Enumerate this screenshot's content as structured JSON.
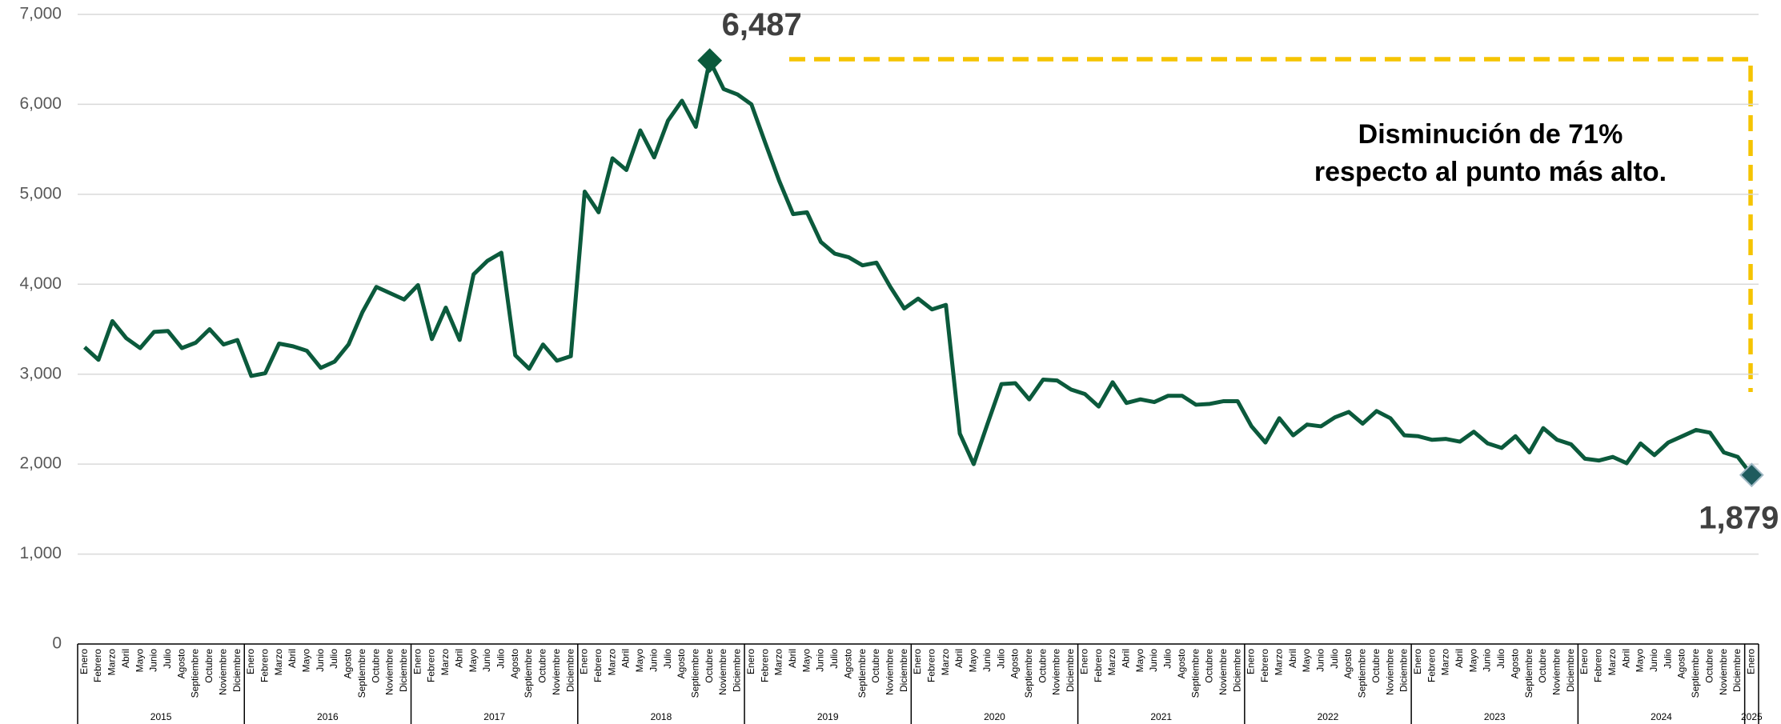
{
  "chart_data": {
    "type": "line",
    "categories": [
      "Enero",
      "Febrero",
      "Marzo",
      "Abril",
      "Mayo",
      "Junio",
      "Julio",
      "Agosto",
      "Septiembre",
      "Octubre",
      "Noviembre",
      "Diciembre",
      "Enero",
      "Febrero",
      "Marzo",
      "Abril",
      "Mayo",
      "Junio",
      "Julio",
      "Agosto",
      "Septiembre",
      "Octubre",
      "Noviembre",
      "Diciembre",
      "Enero",
      "Febrero",
      "Marzo",
      "Abril",
      "Mayo",
      "Junio",
      "Julio",
      "Agosto",
      "Septiembre",
      "Octubre",
      "Noviembre",
      "Diciembre",
      "Enero",
      "Febrero",
      "Marzo",
      "Abril",
      "Mayo",
      "Junio",
      "Julio",
      "Agosto",
      "Septiembre",
      "Octubre",
      "Noviembre",
      "Diciembre",
      "Enero",
      "Febrero",
      "Marzo",
      "Abril",
      "Mayo",
      "Junio",
      "Julio",
      "Agosto",
      "Septiembre",
      "Octubre",
      "Noviembre",
      "Diciembre",
      "Enero",
      "Febrero",
      "Marzo",
      "Abril",
      "Mayo",
      "Junio",
      "Julio",
      "Agosto",
      "Septiembre",
      "Octubre",
      "Noviembre",
      "Diciembre",
      "Enero",
      "Febrero",
      "Marzo",
      "Abril",
      "Mayo",
      "Junio",
      "Julio",
      "Agosto",
      "Septiembre",
      "Octubre",
      "Noviembre",
      "Diciembre",
      "Enero",
      "Febrero",
      "Marzo",
      "Abril",
      "Mayo",
      "Junio",
      "Julio",
      "Agosto",
      "Septiembre",
      "Octubre",
      "Noviembre",
      "Diciembre",
      "Enero",
      "Febrero",
      "Marzo",
      "Abril",
      "Mayo",
      "Junio",
      "Julio",
      "Agosto",
      "Septiembre",
      "Octubre",
      "Noviembre",
      "Diciembre",
      "Enero",
      "Febrero",
      "Marzo",
      "Abril",
      "Mayo",
      "Junio",
      "Julio",
      "Agosto",
      "Septiembre",
      "Octubre",
      "Noviembre",
      "Diciembre",
      "Enero"
    ],
    "category_groups": [
      "2015",
      "2016",
      "2017",
      "2018",
      "2019",
      "2020",
      "2021",
      "2022",
      "2023",
      "2024",
      "2025"
    ],
    "series": [
      {
        "color": "#0b5a3c",
        "values": [
          3300,
          3160,
          3590,
          3400,
          3290,
          3470,
          3480,
          3290,
          3350,
          3500,
          3330,
          3380,
          2980,
          3010,
          3340,
          3310,
          3260,
          3070,
          3140,
          3330,
          3690,
          3970,
          3900,
          3830,
          3990,
          3390,
          3740,
          3380,
          4110,
          4260,
          4350,
          3210,
          3060,
          3330,
          3150,
          3200,
          5030,
          4800,
          5400,
          5270,
          5710,
          5410,
          5820,
          6040,
          5750,
          6487,
          6170,
          6110,
          6000,
          5570,
          5150,
          4780,
          4800,
          4470,
          4340,
          4300,
          4210,
          4240,
          3970,
          3730,
          3840,
          3720,
          3770,
          2340,
          2000,
          2450,
          2890,
          2900,
          2720,
          2940,
          2930,
          2830,
          2780,
          2640,
          2910,
          2680,
          2720,
          2690,
          2760,
          2760,
          2660,
          2670,
          2700,
          2700,
          2420,
          2240,
          2510,
          2320,
          2440,
          2420,
          2520,
          2580,
          2450,
          2590,
          2510,
          2320,
          2310,
          2270,
          2280,
          2250,
          2360,
          2230,
          2180,
          2310,
          2130,
          2400,
          2270,
          2220,
          2060,
          2040,
          2080,
          2010,
          2230,
          2100,
          2240,
          2310,
          2380,
          2350,
          2130,
          2080,
          1879
        ]
      }
    ],
    "value_labels": [
      null,
      null,
      null,
      null,
      null,
      null,
      null,
      null,
      null,
      null,
      null,
      null,
      null,
      null,
      null,
      null,
      null,
      null,
      null,
      null,
      null,
      null,
      null,
      null,
      null,
      null,
      null,
      null,
      null,
      null,
      null,
      null,
      null,
      null,
      null,
      null,
      null,
      null,
      null,
      null,
      null,
      null,
      null,
      null,
      null,
      "6,487",
      null,
      null,
      null,
      null,
      null,
      null,
      null,
      null,
      null,
      null,
      null,
      null,
      null,
      null,
      null,
      null,
      null,
      null,
      null,
      null,
      null,
      null,
      null,
      null,
      null,
      null,
      null,
      null,
      null,
      null,
      null,
      null,
      null,
      null,
      null,
      null,
      null,
      null,
      null,
      null,
      null,
      null,
      null,
      null,
      null,
      null,
      null,
      null,
      null,
      null,
      null,
      null,
      null,
      null,
      null,
      null,
      null,
      null,
      null,
      null,
      null,
      null,
      null,
      null,
      null,
      null,
      null,
      null,
      null,
      null,
      null,
      null,
      null,
      null,
      "1,879"
    ],
    "annotation": [
      "Disminución de 71%",
      "respecto al punto más alto."
    ],
    "ylim": [
      0,
      7000
    ],
    "yticks": [
      0,
      {
        "value": 1000,
        "label": "1,000"
      },
      {
        "value": 2000,
        "label": "2,000"
      },
      {
        "value": 3000,
        "label": "3,000"
      },
      {
        "value": 4000,
        "label": "4,000"
      },
      {
        "value": 5000,
        "label": "5,000"
      },
      {
        "value": 6000,
        "label": "6,000"
      },
      {
        "value": 7000,
        "label": "7,000"
      }
    ],
    "grid": true
  }
}
